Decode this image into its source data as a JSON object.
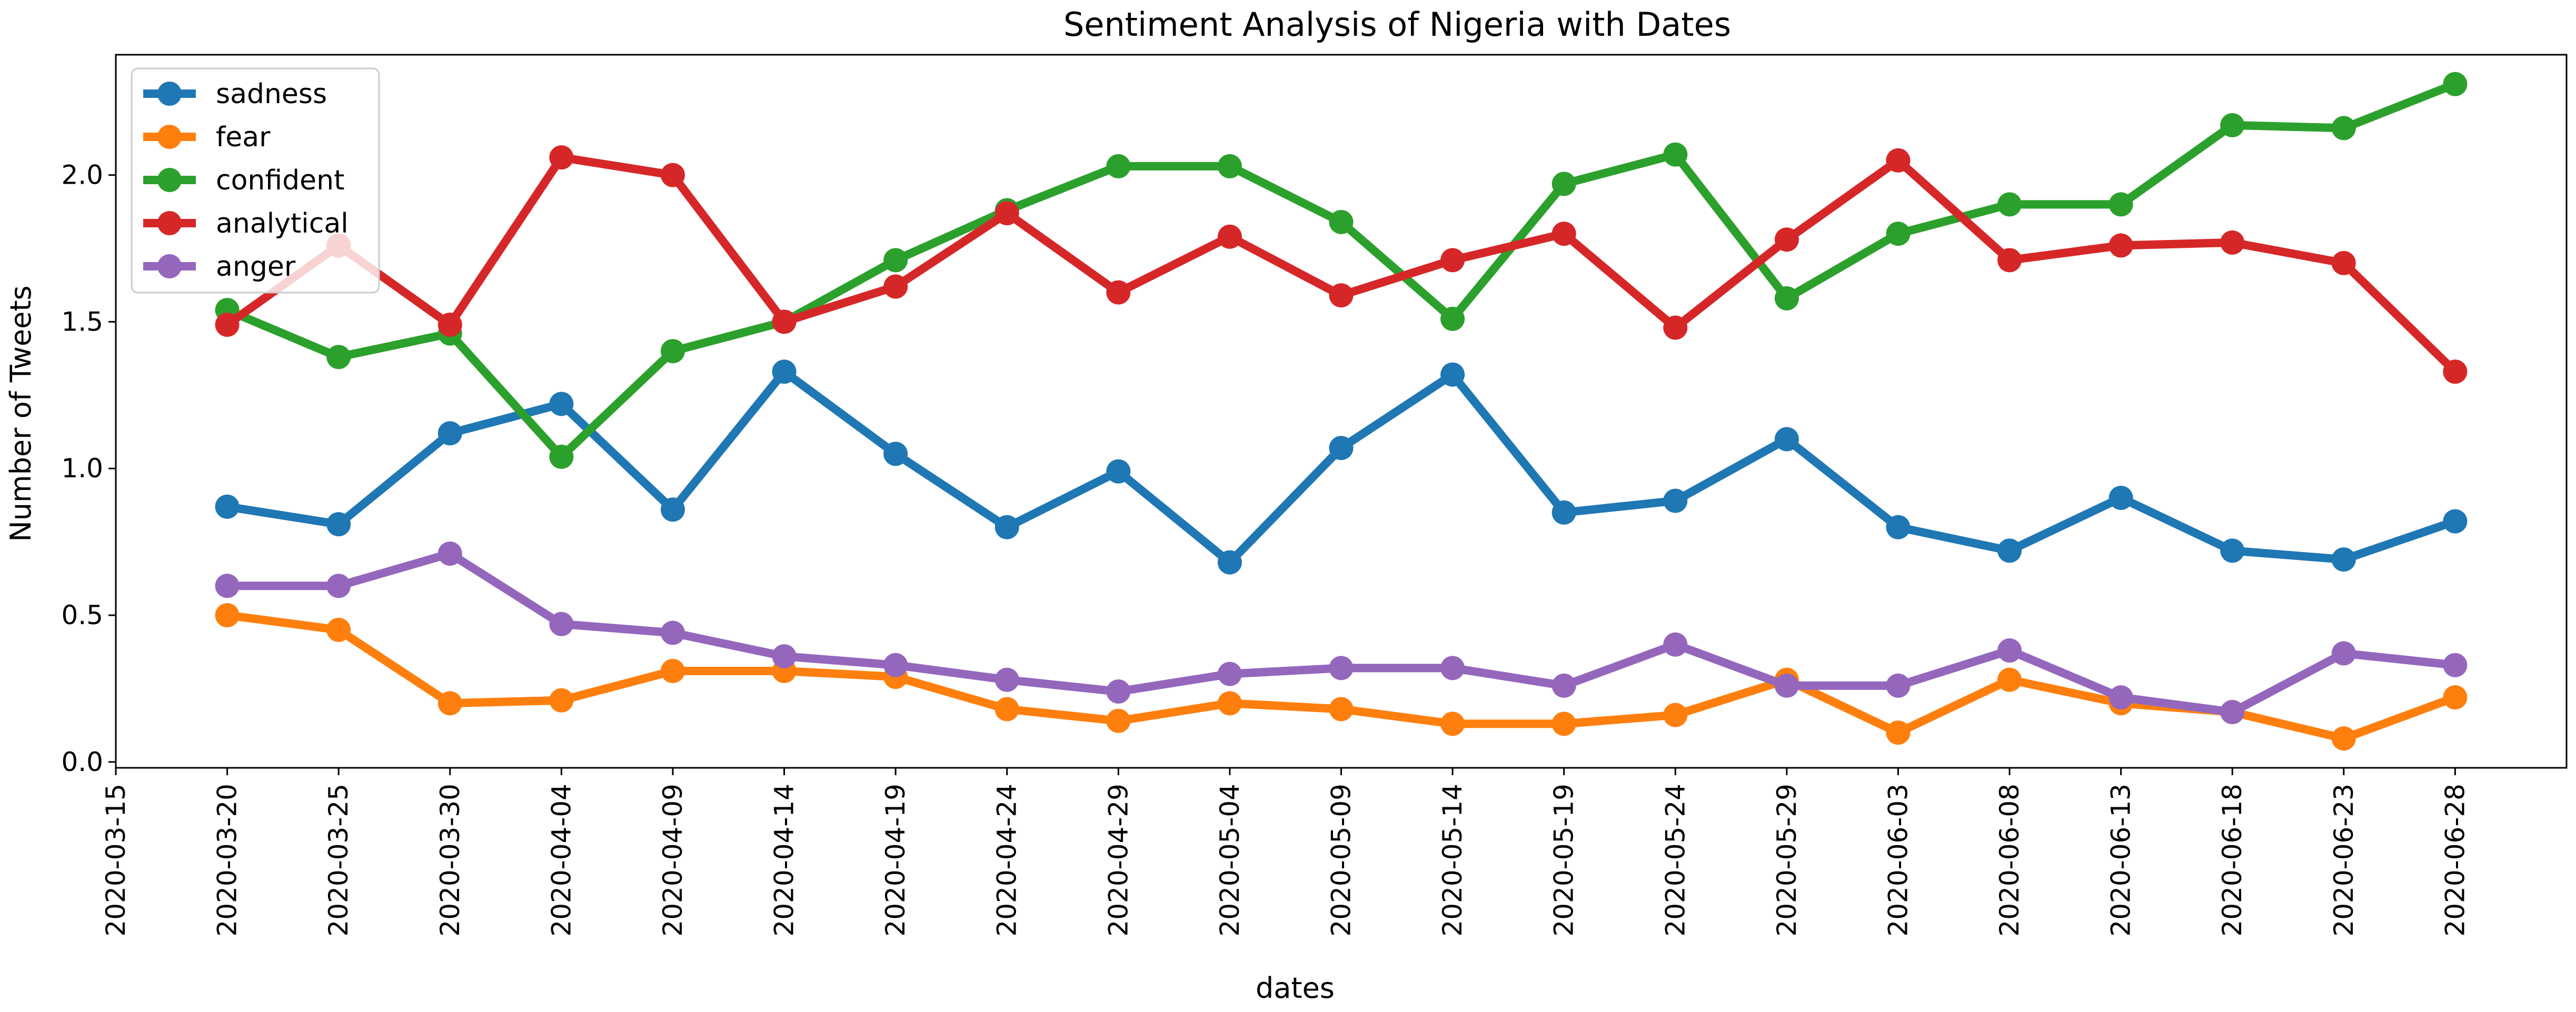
{
  "chart_data": {
    "type": "line",
    "title": "Sentiment Analysis of Nigeria with Dates",
    "xlabel": "dates",
    "ylabel": "Number of Tweets",
    "x_ticks": [
      "2020-03-15",
      "2020-03-20",
      "2020-03-25",
      "2020-03-30",
      "2020-04-04",
      "2020-04-09",
      "2020-04-14",
      "2020-04-19",
      "2020-04-24",
      "2020-04-29",
      "2020-05-04",
      "2020-05-09",
      "2020-05-14",
      "2020-05-19",
      "2020-05-24",
      "2020-05-29",
      "2020-06-03",
      "2020-06-08",
      "2020-06-13",
      "2020-06-18",
      "2020-06-23",
      "2020-06-28"
    ],
    "x": [
      "2020-03-20",
      "2020-03-25",
      "2020-03-30",
      "2020-04-04",
      "2020-04-09",
      "2020-04-14",
      "2020-04-19",
      "2020-04-24",
      "2020-04-29",
      "2020-05-04",
      "2020-05-09",
      "2020-05-14",
      "2020-05-19",
      "2020-05-24",
      "2020-05-29",
      "2020-06-03",
      "2020-06-08",
      "2020-06-13",
      "2020-06-18",
      "2020-06-23",
      "2020-06-28"
    ],
    "y_ticks": [
      "0.0",
      "0.5",
      "1.0",
      "1.5",
      "2.0"
    ],
    "ylim": [
      -0.02,
      2.41
    ],
    "xlim": [
      "2020-03-15",
      "2020-07-03"
    ],
    "grid": false,
    "legend_position": "upper-left",
    "series": [
      {
        "name": "sadness",
        "color": "#1f77b4",
        "values": [
          0.87,
          0.81,
          1.12,
          1.22,
          0.86,
          1.33,
          1.05,
          0.8,
          0.99,
          0.68,
          1.07,
          1.32,
          0.85,
          0.89,
          1.1,
          0.8,
          0.72,
          0.9,
          0.72,
          0.69,
          0.82
        ]
      },
      {
        "name": "fear",
        "color": "#ff7f0e",
        "values": [
          0.5,
          0.45,
          0.2,
          0.21,
          0.31,
          0.31,
          0.29,
          0.18,
          0.14,
          0.2,
          0.18,
          0.13,
          0.13,
          0.16,
          0.28,
          0.1,
          0.28,
          0.2,
          0.17,
          0.08,
          0.22
        ]
      },
      {
        "name": "confident",
        "color": "#2ca02c",
        "values": [
          1.54,
          1.38,
          1.46,
          1.04,
          1.4,
          1.5,
          1.71,
          1.88,
          2.03,
          2.03,
          1.84,
          1.51,
          1.97,
          2.07,
          1.58,
          1.8,
          1.9,
          1.9,
          2.17,
          2.16,
          2.31
        ]
      },
      {
        "name": "analytical",
        "color": "#d62728",
        "values": [
          1.49,
          1.76,
          1.49,
          2.06,
          2.0,
          1.5,
          1.62,
          1.87,
          1.6,
          1.79,
          1.59,
          1.71,
          1.8,
          1.48,
          1.78,
          2.05,
          1.71,
          1.76,
          1.77,
          1.7,
          1.33
        ]
      },
      {
        "name": "anger",
        "color": "#9467bd",
        "values": [
          0.6,
          0.6,
          0.71,
          0.47,
          0.44,
          0.36,
          0.33,
          0.28,
          0.24,
          0.3,
          0.32,
          0.32,
          0.26,
          0.4,
          0.26,
          0.26,
          0.38,
          0.22,
          0.17,
          0.37,
          0.33
        ]
      }
    ]
  }
}
